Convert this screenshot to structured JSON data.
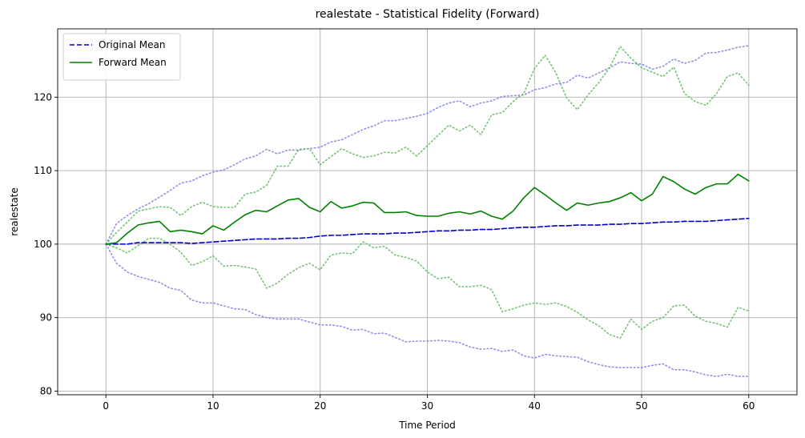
{
  "chart_data": {
    "type": "line",
    "title": "realestate - Statistical Fidelity (Forward)",
    "xlabel": "Time Period",
    "ylabel": "realestate",
    "xlim": [
      -4.5,
      64.5
    ],
    "ylim": [
      79.5,
      129.3
    ],
    "xticks": [
      0,
      10,
      20,
      30,
      40,
      50,
      60
    ],
    "yticks": [
      80,
      90,
      100,
      110,
      120
    ],
    "grid": true,
    "legend_position": "top-left",
    "x": [
      0,
      1,
      2,
      3,
      4,
      5,
      6,
      7,
      8,
      9,
      10,
      11,
      12,
      13,
      14,
      15,
      16,
      17,
      18,
      19,
      20,
      21,
      22,
      23,
      24,
      25,
      26,
      27,
      28,
      29,
      30,
      31,
      32,
      33,
      34,
      35,
      36,
      37,
      38,
      39,
      40,
      41,
      42,
      43,
      44,
      45,
      46,
      47,
      48,
      49,
      50,
      51,
      52,
      53,
      54,
      55,
      56,
      57,
      58,
      59,
      60
    ],
    "series": [
      {
        "name": "Original Mean",
        "color": "#0000cc",
        "style": "dashed",
        "in_legend": true,
        "values": [
          100,
          100,
          100,
          100.2,
          100.2,
          100.2,
          100.2,
          100.2,
          100.1,
          100.2,
          100.3,
          100.4,
          100.5,
          100.6,
          100.7,
          100.7,
          100.7,
          100.8,
          100.8,
          100.9,
          101.1,
          101.2,
          101.2,
          101.3,
          101.4,
          101.4,
          101.4,
          101.5,
          101.5,
          101.6,
          101.7,
          101.8,
          101.8,
          101.9,
          101.9,
          102,
          102,
          102.1,
          102.2,
          102.3,
          102.3,
          102.4,
          102.5,
          102.5,
          102.6,
          102.6,
          102.6,
          102.7,
          102.7,
          102.8,
          102.8,
          102.9,
          103,
          103,
          103.1,
          103.1,
          103.1,
          103.2,
          103.3,
          103.4,
          103.5
        ]
      },
      {
        "name": "Forward Mean",
        "color": "#008000",
        "style": "solid",
        "in_legend": true,
        "values": [
          100,
          100.2,
          101.5,
          102.6,
          102.9,
          103.1,
          101.7,
          101.9,
          101.7,
          101.4,
          102.5,
          101.9,
          103.0,
          104.0,
          104.6,
          104.4,
          105.2,
          106.0,
          106.2,
          105.0,
          104.4,
          105.8,
          104.9,
          105.2,
          105.7,
          105.6,
          104.3,
          104.3,
          104.4,
          103.9,
          103.8,
          103.8,
          104.2,
          104.4,
          104.1,
          104.5,
          103.8,
          103.4,
          104.5,
          106.3,
          107.7,
          106.7,
          105.6,
          104.6,
          105.6,
          105.3,
          105.6,
          105.8,
          106.3,
          107.0,
          105.9,
          106.8,
          109.2,
          108.5,
          107.5,
          106.8,
          107.7,
          108.2,
          108.2,
          109.5,
          108.6
        ]
      },
      {
        "name": "",
        "color": "#7b7be6",
        "style": "dotted",
        "in_legend": false,
        "values": [
          100,
          102.8,
          103.9,
          104.8,
          105.5,
          106.4,
          107.3,
          108.3,
          108.6,
          109.3,
          109.8,
          110.1,
          110.8,
          111.6,
          112.0,
          112.9,
          112.3,
          112.8,
          112.8,
          113.0,
          113.2,
          113.9,
          114.2,
          114.9,
          115.6,
          116.1,
          116.8,
          116.8,
          117.1,
          117.4,
          117.8,
          118.6,
          119.2,
          119.5,
          118.7,
          119.2,
          119.5,
          120.1,
          120.2,
          120.3,
          121.0,
          121.3,
          121.8,
          122.0,
          123.0,
          122.6,
          123.3,
          124.0,
          124.8,
          124.6,
          124.5,
          123.8,
          124.2,
          125.2,
          124.6,
          125.0,
          126.0,
          126.1,
          126.4,
          126.8,
          127.0
        ]
      },
      {
        "name": "",
        "color": "#7b7be6",
        "style": "dotted",
        "in_legend": false,
        "values": [
          100,
          97.4,
          96.2,
          95.6,
          95.2,
          94.8,
          94.0,
          93.7,
          92.4,
          92.0,
          92.0,
          91.6,
          91.2,
          91.1,
          90.4,
          90.0,
          89.8,
          89.8,
          89.8,
          89.4,
          89.0,
          89.0,
          88.8,
          88.3,
          88.4,
          87.8,
          87.9,
          87.3,
          86.7,
          86.8,
          86.8,
          86.9,
          86.8,
          86.6,
          86.0,
          85.7,
          85.8,
          85.4,
          85.6,
          84.8,
          84.5,
          85.0,
          84.8,
          84.7,
          84.6,
          84.0,
          83.6,
          83.3,
          83.2,
          83.2,
          83.2,
          83.5,
          83.7,
          82.9,
          82.9,
          82.6,
          82.2,
          82.0,
          82.3,
          82.0,
          82.0
        ]
      },
      {
        "name": "",
        "color": "#5cb85c",
        "style": "dotted",
        "in_legend": false,
        "values": [
          100,
          99.5,
          98.8,
          99.8,
          100.8,
          100.8,
          100.0,
          98.9,
          97.1,
          97.6,
          98.4,
          97.0,
          97.1,
          96.9,
          96.6,
          94.0,
          94.7,
          95.9,
          96.8,
          97.4,
          96.5,
          98.5,
          98.8,
          98.7,
          100.3,
          99.5,
          99.7,
          98.5,
          98.2,
          97.7,
          96.2,
          95.3,
          95.5,
          94.2,
          94.2,
          94.4,
          93.8,
          90.8,
          91.2,
          91.7,
          92.0,
          91.8,
          92.0,
          91.5,
          90.7,
          89.7,
          88.9,
          87.7,
          87.2,
          89.8,
          88.4,
          89.5,
          90.0,
          91.6,
          91.7,
          90.2,
          89.5,
          89.2,
          88.7,
          91.4,
          90.9
        ]
      },
      {
        "name": "",
        "color": "#5cb85c",
        "style": "dotted",
        "in_legend": false,
        "values": [
          100,
          101.6,
          103.0,
          104.5,
          104.8,
          105.1,
          105.0,
          103.9,
          105.1,
          105.7,
          105.1,
          105.0,
          105.0,
          106.8,
          107.1,
          108.0,
          110.6,
          110.6,
          112.9,
          113.0,
          110.8,
          111.9,
          113.0,
          112.3,
          111.8,
          112.0,
          112.5,
          112.4,
          113.2,
          112.0,
          113.4,
          114.8,
          116.2,
          115.4,
          116.2,
          114.9,
          117.6,
          117.9,
          119.4,
          120.5,
          123.9,
          125.7,
          123.3,
          119.9,
          118.3,
          120.3,
          122.0,
          124.0,
          126.9,
          125.3,
          124.0,
          123.4,
          122.8,
          124.1,
          120.5,
          119.4,
          118.9,
          120.5,
          122.8,
          123.3,
          121.6
        ]
      }
    ]
  }
}
